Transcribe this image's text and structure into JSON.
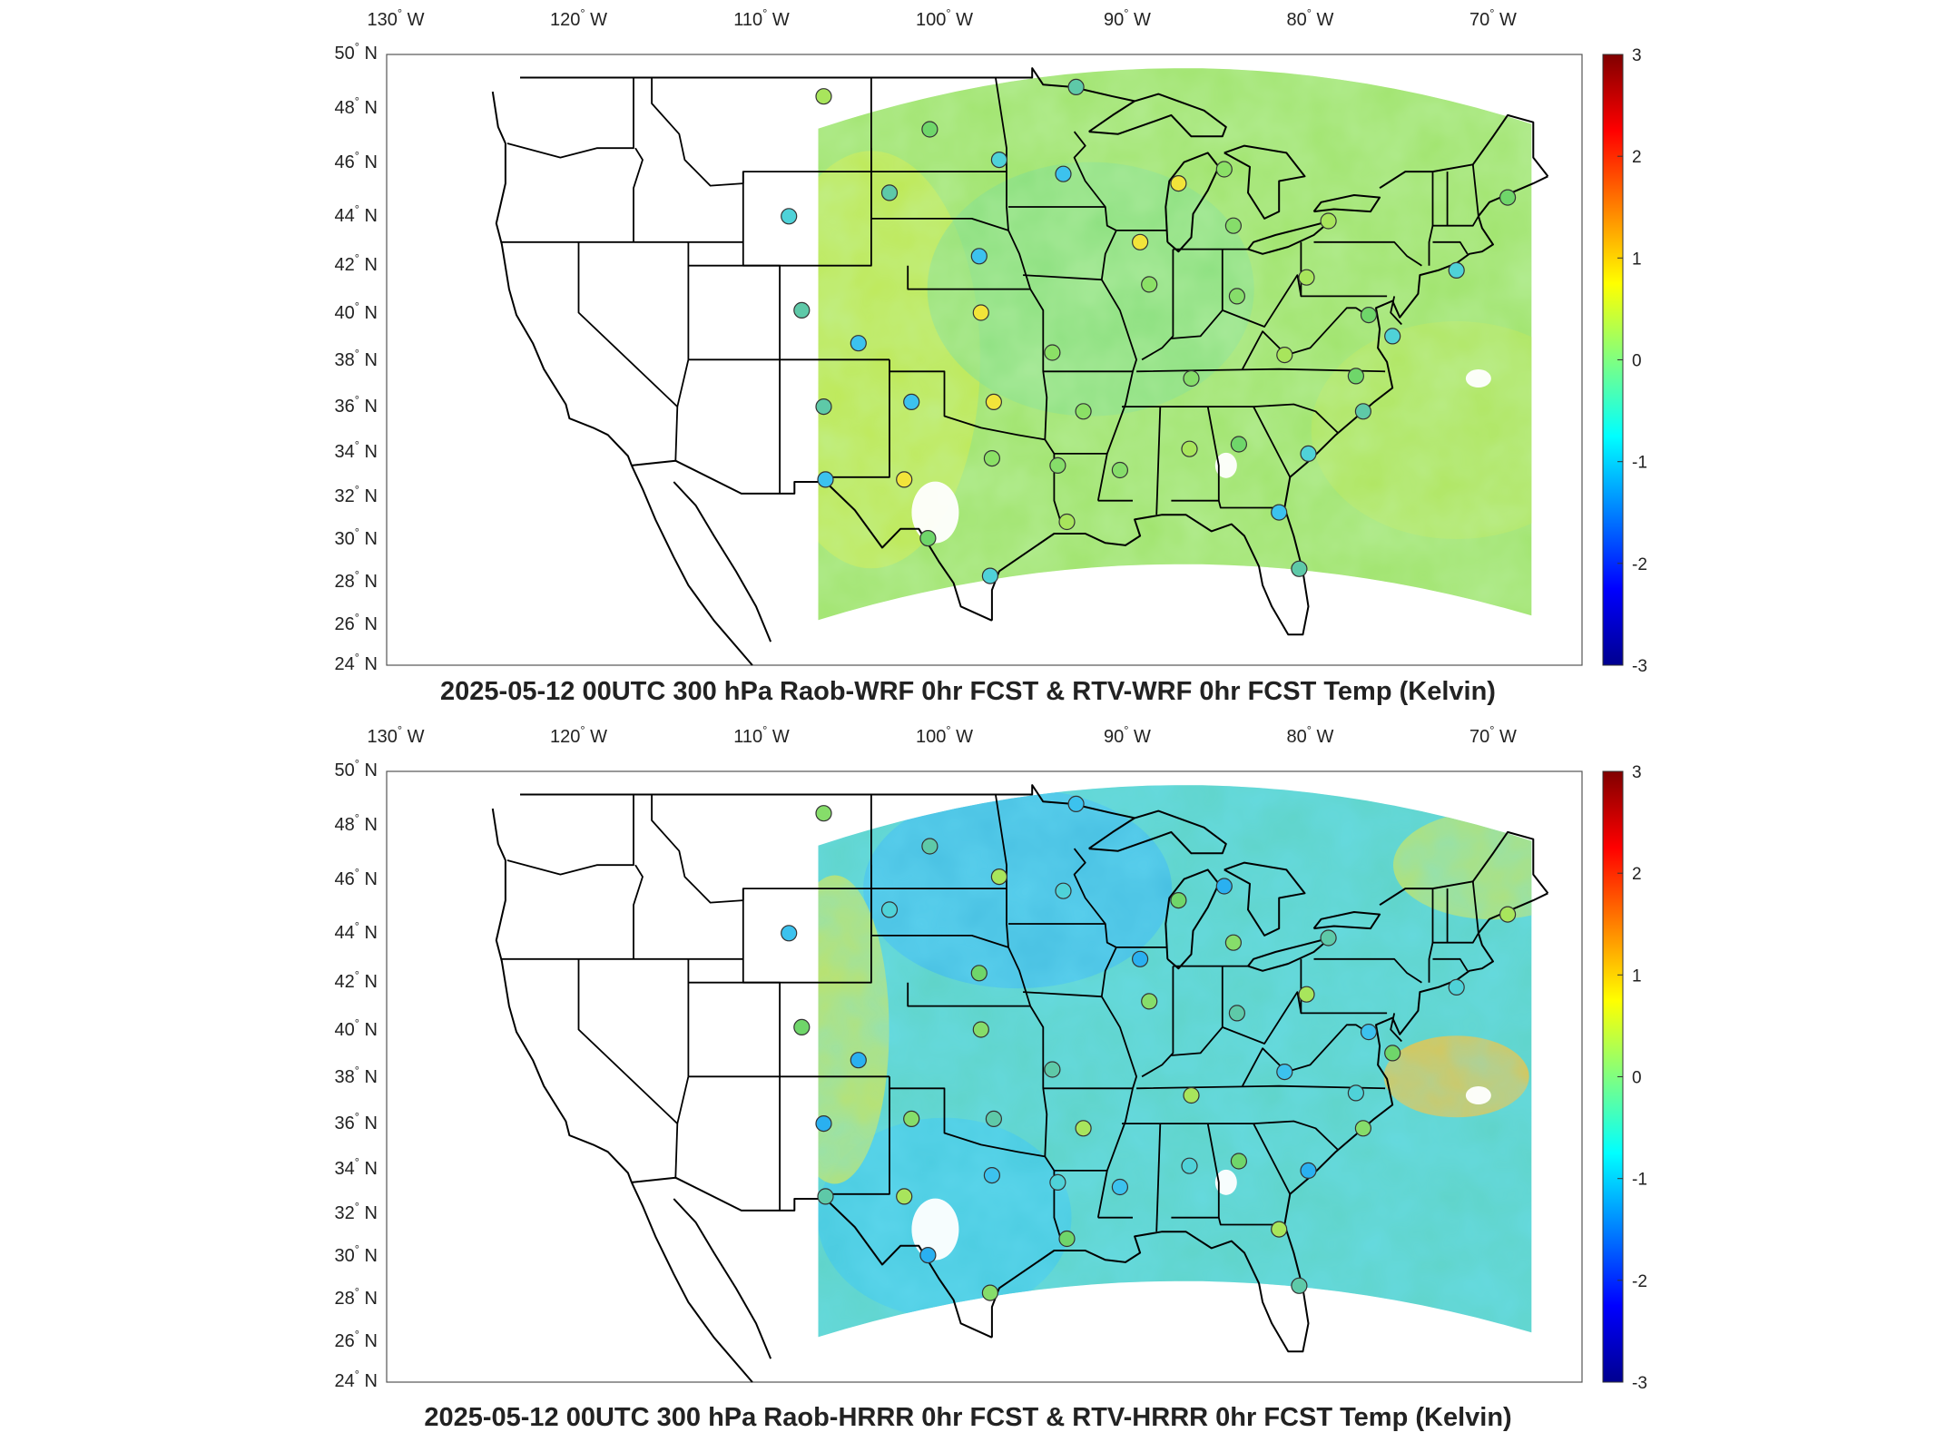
{
  "panels": [
    {
      "title": "2025-05-12 00UTC 300 hPa Raob-WRF 0hr FCST & RTV-WRF 0hr FCST Temp (Kelvin)",
      "field_tone": "warm",
      "station_fill_colors": [
        "#6fd66a",
        "#8be066",
        "#5ec9a8",
        "#a8e55c",
        "#f2e43a",
        "#4fd2d8",
        "#86dd6a",
        "#3cc2ee"
      ]
    },
    {
      "title": "2025-05-12 00UTC 300 hPa Raob-HRRR 0hr FCST & RTV-HRRR 0hr FCST Temp (Kelvin)",
      "field_tone": "cool",
      "station_fill_colors": [
        "#6fd66a",
        "#5ec9a8",
        "#4fd2d8",
        "#86dd6a",
        "#3cc2ee",
        "#2ab0f0",
        "#a8e55c"
      ]
    }
  ],
  "longitude_labels": [
    "130 W",
    "120 W",
    "110 W",
    "100 W",
    "90 W",
    "80 W",
    "70 W"
  ],
  "latitude_labels": [
    "50 N",
    "48 N",
    "46 N",
    "44 N",
    "42 N",
    "40 N",
    "38 N",
    "36 N",
    "34 N",
    "32 N",
    "30 N",
    "28 N",
    "26 N",
    "24 N"
  ],
  "colorbar": {
    "min": -3,
    "max": 3,
    "tick_labels": [
      "3",
      "2",
      "1",
      "0",
      "-1",
      "-2",
      "-3"
    ],
    "colormap": "jet",
    "colors": [
      "#00008f",
      "#0000ff",
      "#0080ff",
      "#00ffff",
      "#80ff80",
      "#ffff00",
      "#ff8000",
      "#ff0000",
      "#800000"
    ]
  },
  "map": {
    "projection": "Lambert conformal, CONUS",
    "lon_range": [
      -131,
      -63
    ],
    "lat_range": [
      24,
      50
    ]
  }
}
